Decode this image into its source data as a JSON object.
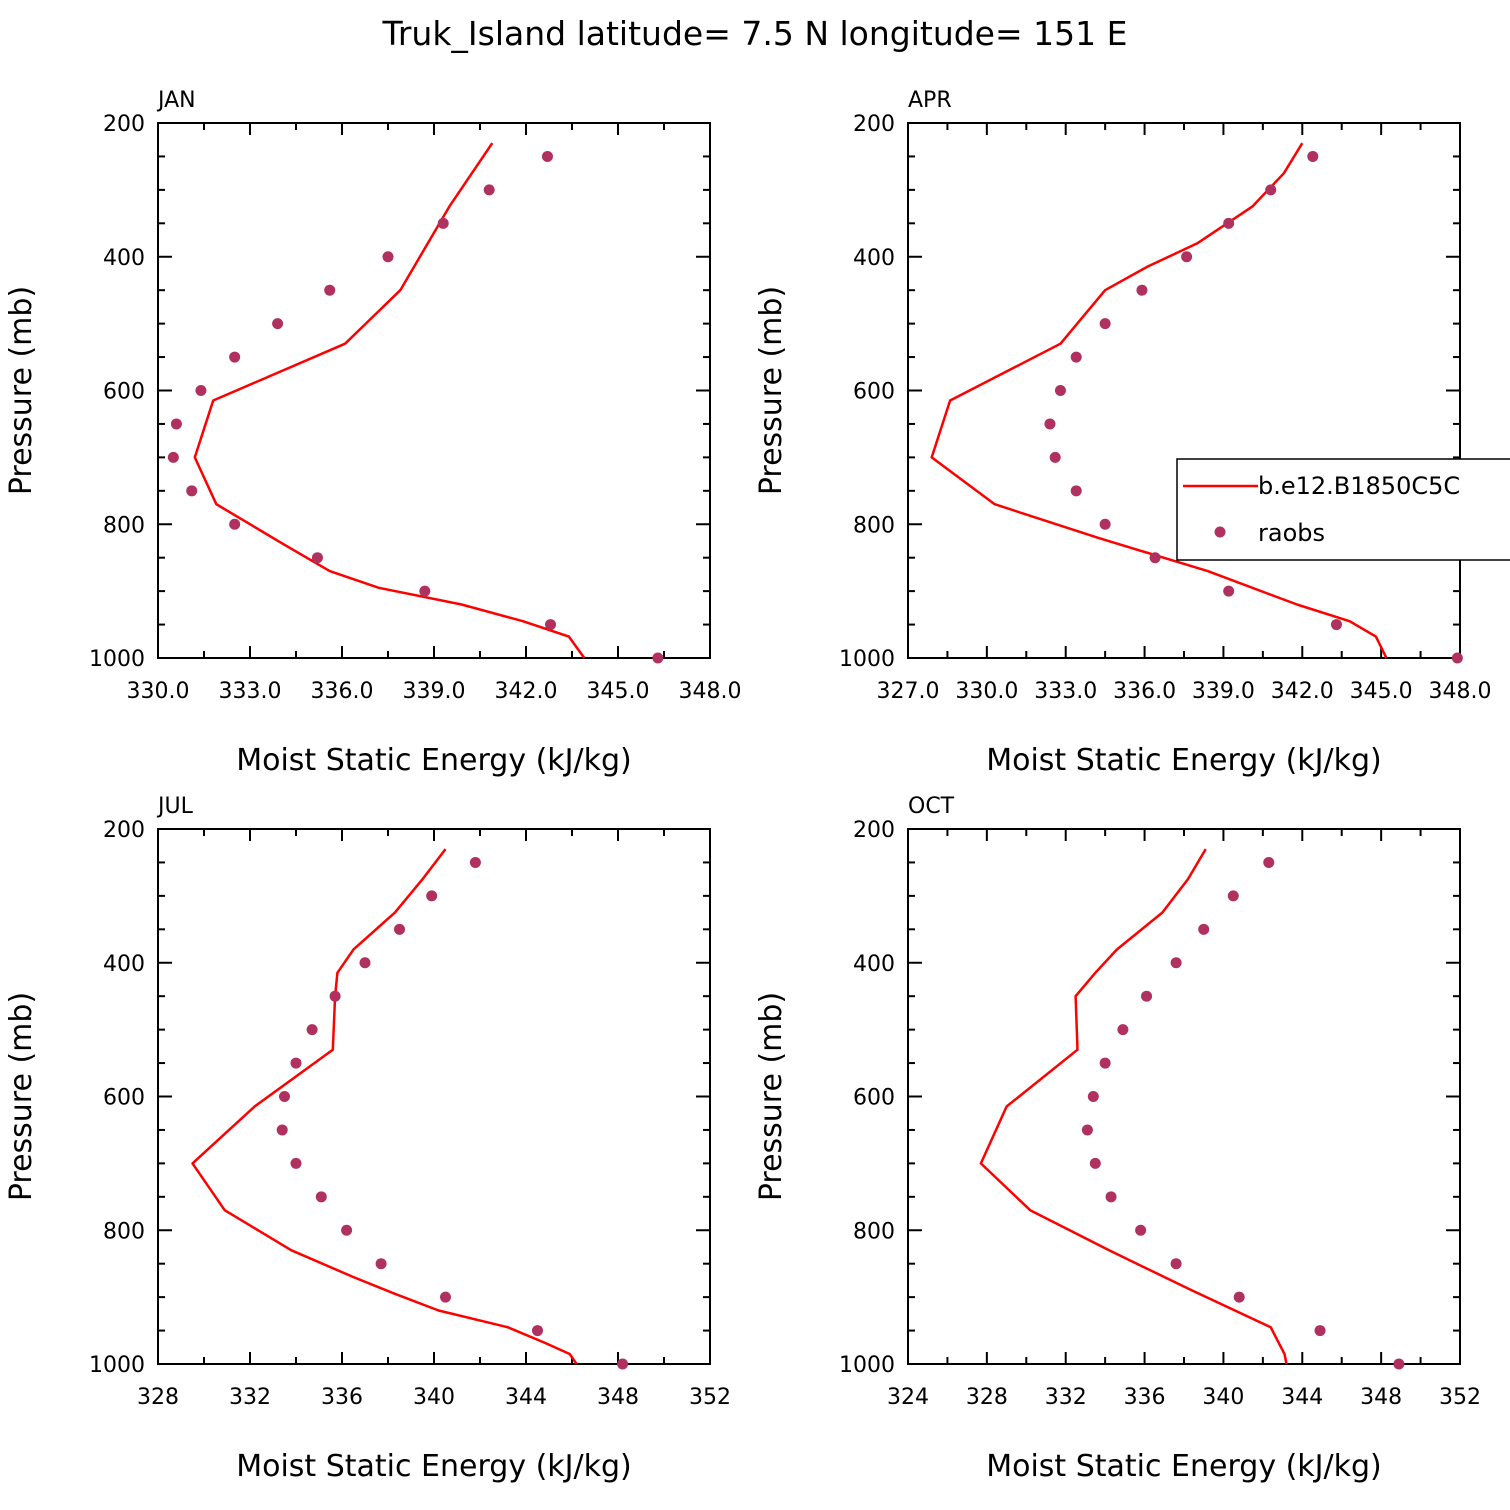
{
  "suptitle": "Truk_Island  latitude= 7.5 N longitude= 151 E",
  "colors": {
    "model": "#ff0000",
    "raobs": "#b03060",
    "axis": "#000000"
  },
  "legend": {
    "model_label": "b.e12.B1850C5C",
    "raobs_label": "raobs",
    "location": "right of APR panel"
  },
  "chart_data": [
    {
      "type": "line",
      "title": "JAN",
      "xlabel": "Moist Static Energy (kJ/kg)",
      "ylabel": "Pressure (mb)",
      "xlim": [
        330,
        348
      ],
      "ylim": [
        1000,
        200
      ],
      "xticks": [
        "330.0",
        "333.0",
        "336.0",
        "339.0",
        "342.0",
        "345.0",
        "348.0"
      ],
      "yticks": [
        "200",
        "400",
        "600",
        "800",
        "1000"
      ],
      "series": [
        {
          "name": "b.e12.B1850C5C",
          "x": [
            340.9,
            339.5,
            337.9,
            336.1,
            331.8,
            331.2,
            331.9,
            334.1,
            335.6,
            337.2,
            339.9,
            341.9,
            343.4,
            343.9
          ],
          "y": [
            230,
            325,
            450,
            530,
            615,
            700,
            770,
            830,
            870,
            895,
            920,
            945,
            968,
            1000
          ]
        },
        {
          "name": "raobs",
          "x": [
            342.7,
            340.8,
            339.3,
            337.5,
            335.6,
            333.9,
            332.5,
            331.4,
            330.6,
            330.5,
            331.1,
            332.5,
            335.2,
            338.7,
            342.8,
            346.3
          ],
          "y": [
            250,
            300,
            350,
            400,
            450,
            500,
            550,
            600,
            650,
            700,
            750,
            800,
            850,
            900,
            950,
            1000
          ]
        }
      ]
    },
    {
      "type": "line",
      "title": "APR",
      "xlabel": "Moist Static Energy (kJ/kg)",
      "ylabel": "Pressure (mb)",
      "xlim": [
        327,
        348
      ],
      "ylim": [
        1000,
        200
      ],
      "xticks": [
        "327.0",
        "330.0",
        "333.0",
        "336.0",
        "339.0",
        "342.0",
        "345.0",
        "348.0"
      ],
      "yticks": [
        "200",
        "400",
        "600",
        "800",
        "1000"
      ],
      "series": [
        {
          "name": "b.e12.B1850C5C",
          "x": [
            342.0,
            341.3,
            340.1,
            338.0,
            336.1,
            334.5,
            332.8,
            328.6,
            327.9,
            330.3,
            334.2,
            338.4,
            341.8,
            343.8,
            344.8,
            345.2
          ],
          "y": [
            230,
            275,
            325,
            380,
            415,
            450,
            530,
            615,
            700,
            770,
            820,
            870,
            920,
            945,
            968,
            1000
          ]
        },
        {
          "name": "raobs",
          "x": [
            342.4,
            340.8,
            339.2,
            337.6,
            335.9,
            334.5,
            333.4,
            332.8,
            332.4,
            332.6,
            333.4,
            334.5,
            336.4,
            339.2,
            343.3,
            347.9
          ],
          "y": [
            250,
            300,
            350,
            400,
            450,
            500,
            550,
            600,
            650,
            700,
            750,
            800,
            850,
            900,
            950,
            1000
          ]
        }
      ]
    },
    {
      "type": "line",
      "title": "JUL",
      "xlabel": "Moist Static Energy (kJ/kg)",
      "ylabel": "Pressure (mb)",
      "xlim": [
        328,
        352
      ],
      "ylim": [
        1000,
        200
      ],
      "xticks": [
        "328",
        "332",
        "336",
        "340",
        "344",
        "348",
        "352"
      ],
      "yticks": [
        "200",
        "400",
        "600",
        "800",
        "1000"
      ],
      "series": [
        {
          "name": "b.e12.B1850C5C",
          "x": [
            340.5,
            339.5,
            338.3,
            336.5,
            335.8,
            335.7,
            335.6,
            332.2,
            329.5,
            330.9,
            333.8,
            336.5,
            338.3,
            340.2,
            343.2,
            344.8,
            345.9,
            346.2
          ],
          "y": [
            230,
            275,
            325,
            380,
            415,
            450,
            530,
            615,
            700,
            770,
            830,
            870,
            895,
            920,
            945,
            968,
            985,
            1000
          ]
        },
        {
          "name": "raobs",
          "x": [
            341.8,
            339.9,
            338.5,
            337.0,
            335.7,
            334.7,
            334.0,
            333.5,
            333.4,
            334.0,
            335.1,
            336.2,
            337.7,
            340.5,
            344.5,
            348.2
          ],
          "y": [
            250,
            300,
            350,
            400,
            450,
            500,
            550,
            600,
            650,
            700,
            750,
            800,
            850,
            900,
            950,
            1000
          ]
        }
      ]
    },
    {
      "type": "line",
      "title": "OCT",
      "xlabel": "Moist Static Energy (kJ/kg)",
      "ylabel": "Pressure (mb)",
      "xlim": [
        324,
        352
      ],
      "ylim": [
        1000,
        200
      ],
      "xticks": [
        "324",
        "328",
        "332",
        "336",
        "340",
        "344",
        "348",
        "352"
      ],
      "yticks": [
        "200",
        "400",
        "600",
        "800",
        "1000"
      ],
      "series": [
        {
          "name": "b.e12.B1850C5C",
          "x": [
            339.1,
            338.2,
            336.9,
            334.6,
            333.5,
            332.5,
            332.6,
            329.0,
            327.7,
            330.2,
            334.2,
            338.4,
            342.4,
            342.8,
            343.1,
            343.2
          ],
          "y": [
            230,
            275,
            325,
            380,
            415,
            450,
            530,
            615,
            700,
            770,
            830,
            890,
            945,
            968,
            985,
            1000
          ]
        },
        {
          "name": "raobs",
          "x": [
            342.3,
            340.5,
            339.0,
            337.6,
            336.1,
            334.9,
            334.0,
            333.4,
            333.1,
            333.5,
            334.3,
            335.8,
            337.6,
            340.8,
            344.9,
            348.9
          ],
          "y": [
            250,
            300,
            350,
            400,
            450,
            500,
            550,
            600,
            650,
            700,
            750,
            800,
            850,
            900,
            950,
            1000
          ]
        }
      ]
    }
  ]
}
